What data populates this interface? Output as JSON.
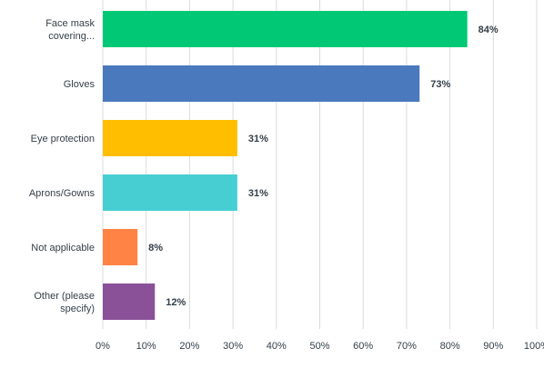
{
  "chart_data": {
    "type": "bar",
    "orientation": "horizontal",
    "categories": [
      [
        "Face mask",
        "covering..."
      ],
      [
        "Gloves"
      ],
      [
        "Eye protection"
      ],
      [
        "Aprons/Gowns"
      ],
      [
        "Not applicable"
      ],
      [
        "Other (please",
        "specify)"
      ]
    ],
    "values": [
      84,
      73,
      31,
      31,
      8,
      12
    ],
    "value_labels": [
      "84%",
      "73%",
      "31%",
      "31%",
      "8%",
      "12%"
    ],
    "colors": [
      "#00c875",
      "#4a79bd",
      "#ffbe00",
      "#47ced3",
      "#ff8345",
      "#8a5198"
    ],
    "x_ticks": [
      "0%",
      "10%",
      "20%",
      "30%",
      "40%",
      "50%",
      "60%",
      "70%",
      "80%",
      "90%",
      "100%"
    ],
    "xlim": [
      0,
      100
    ],
    "grid": true,
    "legend": "none"
  }
}
